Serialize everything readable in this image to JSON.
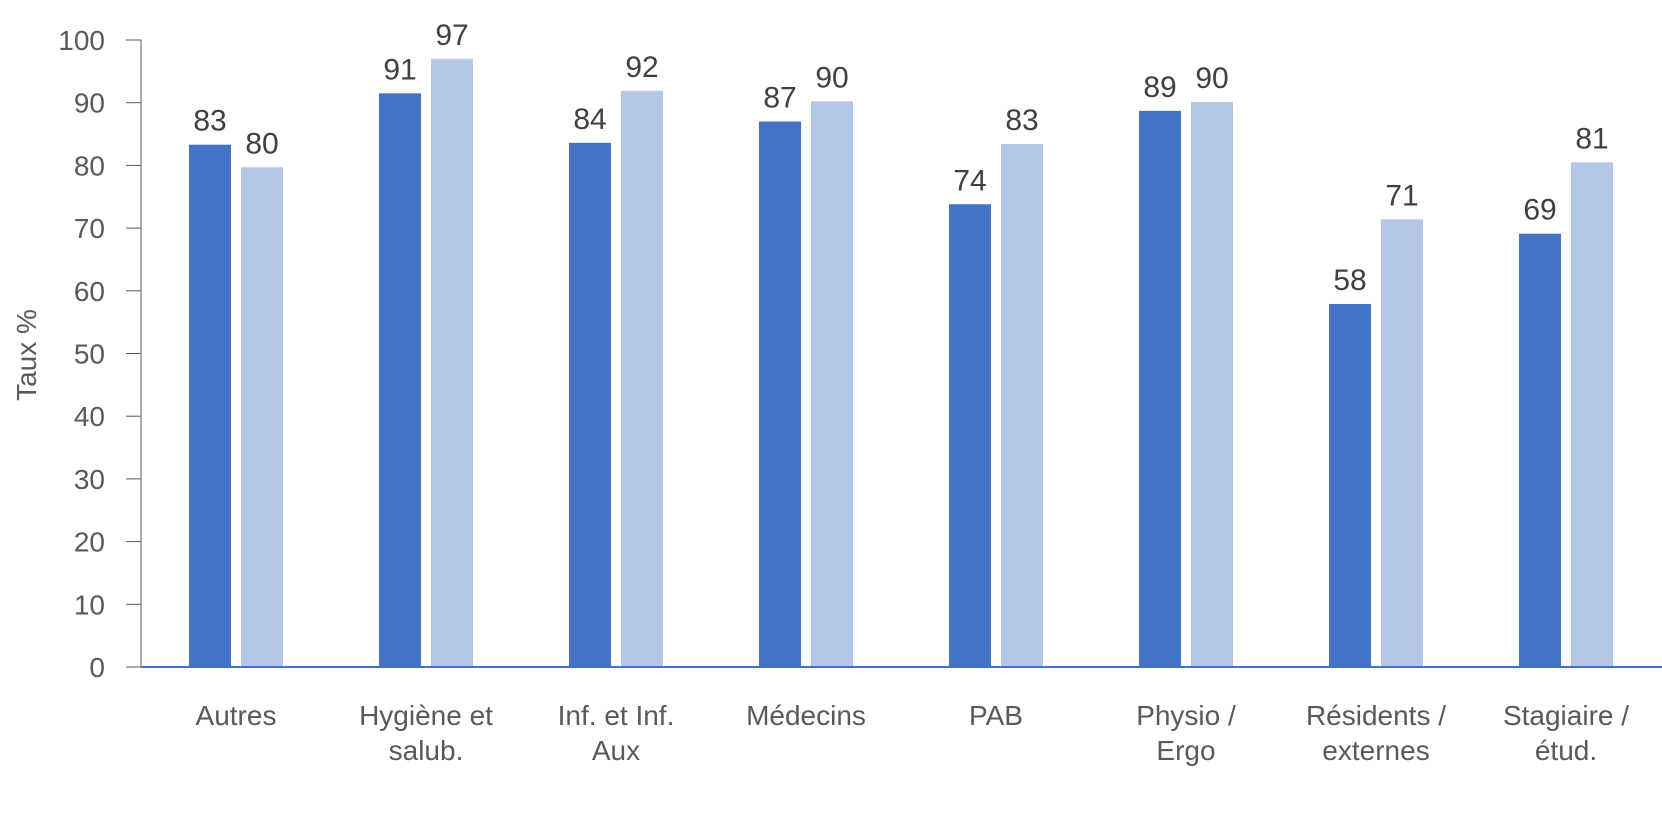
{
  "chart_data": {
    "type": "bar",
    "categories": [
      [
        "Autres"
      ],
      [
        "Hygiène et",
        "salub."
      ],
      [
        "Inf. et Inf.",
        "Aux"
      ],
      [
        "Médecins"
      ],
      [
        "PAB"
      ],
      [
        "Physio /",
        "Ergo"
      ],
      [
        "Résidents /",
        "externes"
      ],
      [
        "Stagiaire /",
        "étud."
      ]
    ],
    "series": [
      {
        "values": [
          83.3,
          91.5,
          83.6,
          87.0,
          73.8,
          88.7,
          57.9,
          69.1
        ],
        "labels": [
          "83",
          "91",
          "84",
          "87",
          "74",
          "89",
          "58",
          "69"
        ],
        "color": "#4472C4"
      },
      {
        "values": [
          79.7,
          97.0,
          91.9,
          90.2,
          83.4,
          90.1,
          71.4,
          80.5
        ],
        "labels": [
          "80",
          "97",
          "92",
          "90",
          "83",
          "90",
          "71",
          "81"
        ],
        "color": "#B4C7E7"
      }
    ],
    "ylabel": "Taux %",
    "xlabel": "",
    "ylim": [
      0,
      100
    ],
    "yticks": [
      "0",
      "10",
      "20",
      "30",
      "40",
      "50",
      "60",
      "70",
      "80",
      "90",
      "100"
    ],
    "grid": false,
    "axis_color": "#4472C4",
    "tick_color": "#595959"
  }
}
